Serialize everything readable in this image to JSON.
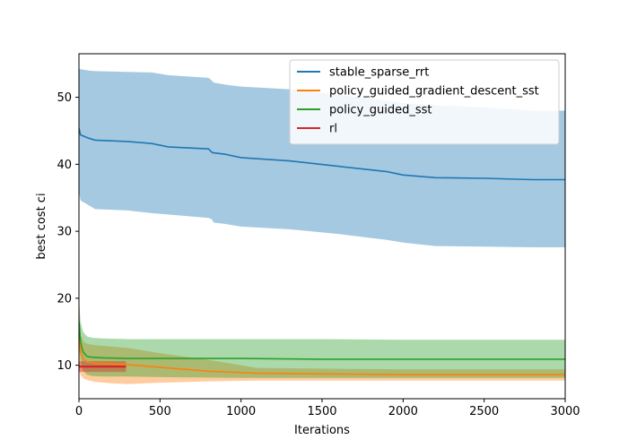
{
  "chart_data": {
    "type": "line",
    "title": "",
    "xlabel": "Iterations",
    "ylabel": "best cost ci",
    "xlim": [
      0,
      3000
    ],
    "ylim": [
      5,
      56.5
    ],
    "xticks": [
      0,
      500,
      1000,
      1500,
      2000,
      2500,
      3000
    ],
    "yticks": [
      10,
      20,
      30,
      40,
      50
    ],
    "grid": false,
    "legend_position": "top-right",
    "series": [
      {
        "name": "stable_sparse_rrt",
        "color": "#1f77b4",
        "x": [
          0,
          10,
          60,
          100,
          300,
          450,
          550,
          800,
          820,
          830,
          900,
          1000,
          1300,
          1600,
          1900,
          2000,
          2200,
          2500,
          2800,
          3000
        ],
        "y": [
          45.4,
          44.4,
          43.9,
          43.6,
          43.4,
          43.1,
          42.6,
          42.3,
          41.8,
          41.7,
          41.5,
          41.0,
          40.5,
          39.7,
          38.9,
          38.4,
          38.0,
          37.9,
          37.7,
          37.7
        ],
        "upper": [
          54.3,
          54.2,
          54.0,
          53.9,
          53.8,
          53.7,
          53.3,
          52.9,
          52.5,
          52.2,
          51.9,
          51.6,
          51.2,
          50.4,
          49.5,
          49.1,
          48.8,
          48.5,
          48.0,
          48.0
        ],
        "lower": [
          36.0,
          34.6,
          33.9,
          33.3,
          33.1,
          32.7,
          32.5,
          32.0,
          31.8,
          31.3,
          31.1,
          30.7,
          30.3,
          29.6,
          28.7,
          28.3,
          27.8,
          27.7,
          27.6,
          27.6
        ]
      },
      {
        "name": "policy_guided_gradient_descent_sst",
        "color": "#ff7f0e",
        "x": [
          0,
          10,
          30,
          50,
          100,
          200,
          300,
          500,
          800,
          1100,
          1500,
          2000,
          2500,
          3000
        ],
        "y": [
          15.5,
          12.0,
          10.8,
          10.5,
          10.3,
          10.2,
          10.1,
          9.7,
          9.1,
          8.8,
          8.7,
          8.6,
          8.6,
          8.6
        ],
        "upper": [
          19.0,
          14.5,
          13.5,
          13.2,
          13.0,
          12.8,
          12.6,
          11.8,
          10.8,
          9.6,
          9.5,
          9.4,
          9.4,
          9.4
        ],
        "lower": [
          9.5,
          8.5,
          8.0,
          7.8,
          7.5,
          7.3,
          7.2,
          7.4,
          7.6,
          7.7,
          7.7,
          7.7,
          7.7,
          7.7
        ]
      },
      {
        "name": "policy_guided_sst",
        "color": "#2ca02c",
        "x": [
          0,
          10,
          25,
          50,
          80,
          150,
          300,
          600,
          1000,
          1500,
          2000,
          2500,
          3000
        ],
        "y": [
          16.5,
          13.5,
          12.0,
          11.3,
          11.2,
          11.1,
          11.0,
          11.0,
          11.0,
          10.9,
          10.9,
          10.9,
          10.9
        ],
        "upper": [
          20.0,
          16.5,
          15.0,
          14.3,
          14.1,
          14.0,
          13.9,
          13.9,
          13.9,
          13.9,
          13.8,
          13.8,
          13.8
        ],
        "lower": [
          13.0,
          10.5,
          9.2,
          8.6,
          8.4,
          8.3,
          8.3,
          8.2,
          8.1,
          8.1,
          8.1,
          8.1,
          8.1
        ]
      },
      {
        "name": "rl",
        "color": "#d62728",
        "x": [
          0,
          290
        ],
        "y": [
          9.8,
          9.8
        ],
        "upper": [
          10.6,
          10.6
        ],
        "lower": [
          9.0,
          9.0
        ]
      }
    ]
  }
}
